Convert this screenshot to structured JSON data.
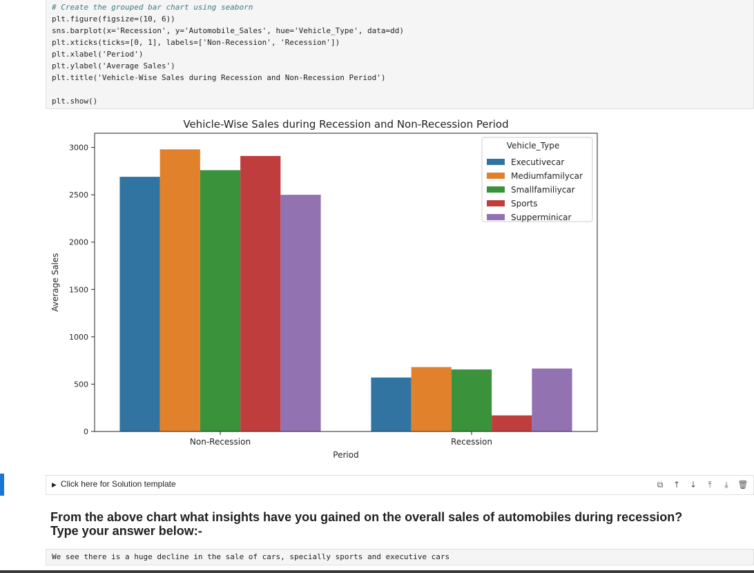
{
  "code_cell": {
    "lines": [
      "# Create the grouped bar chart using seaborn",
      "plt.figure(figsize=(10, 6))",
      "sns.barplot(x='Recession', y='Automobile_Sales', hue='Vehicle_Type', data=dd)",
      "plt.xticks(ticks=[0, 1], labels=['Non-Recession', 'Recession'])",
      "plt.xlabel('Period')",
      "plt.ylabel('Average Sales')",
      "plt.title('Vehicle-Wise Sales during Recession and Non-Recession Period')",
      "",
      "plt.show()"
    ]
  },
  "chart_data": {
    "type": "bar",
    "title": "Vehicle-Wise Sales during Recession and Non-Recession Period",
    "xlabel": "Period",
    "ylabel": "Average Sales",
    "categories": [
      "Non-Recession",
      "Recession"
    ],
    "ylim": [
      0,
      3150
    ],
    "yticks": [
      0,
      500,
      1000,
      1500,
      2000,
      2500,
      3000
    ],
    "legend": {
      "title": "Vehicle_Type",
      "placement": "top-right"
    },
    "series": [
      {
        "name": "Executivecar",
        "color": "#3274a1",
        "values": [
          2690,
          570
        ]
      },
      {
        "name": "Mediumfamilycar",
        "color": "#e1812c",
        "values": [
          2980,
          680
        ]
      },
      {
        "name": "Smallfamiliycar",
        "color": "#3a923a",
        "values": [
          2760,
          655
        ]
      },
      {
        "name": "Sports",
        "color": "#c03d3e",
        "values": [
          2910,
          170
        ]
      },
      {
        "name": "Supperminicar",
        "color": "#9372b2",
        "values": [
          2500,
          665
        ]
      }
    ],
    "grid": false
  },
  "solution_toggle": {
    "label": "Click here for Solution template"
  },
  "toolbar": {
    "icons": [
      "copy-icon",
      "arrow-up-icon",
      "arrow-down-icon",
      "insert-above-icon",
      "insert-below-icon",
      "delete-icon"
    ]
  },
  "question": {
    "line1": "From the above chart what insights have you gained on the overall sales of automobiles during recession?",
    "line2": "Type your answer below:-"
  },
  "answer": {
    "text": "We see there is a huge decline in the sale of cars, specially sports and executive cars"
  },
  "colors": {
    "accent": "#1976d2"
  }
}
